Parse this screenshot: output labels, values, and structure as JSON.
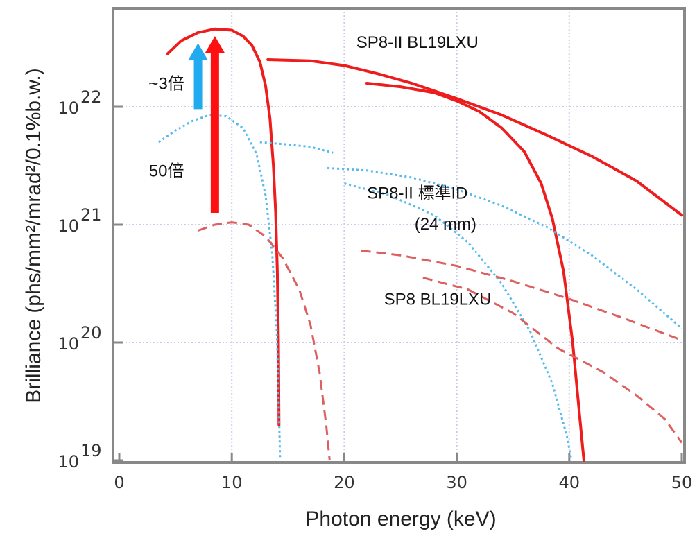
{
  "chart_data": {
    "type": "line",
    "xlabel": "Photon energy (keV)",
    "ylabel": "Brilliance (phs/mm²/mrad²/0.1%b.w.)",
    "xlim": [
      0,
      50
    ],
    "ylim_log10": [
      19,
      22.8
    ],
    "log_y": true,
    "grid": true,
    "x_ticks": [
      {
        "value": 0,
        "label": "0"
      },
      {
        "value": 10,
        "label": "10"
      },
      {
        "value": 20,
        "label": "20"
      },
      {
        "value": 30,
        "label": "30"
      },
      {
        "value": 40,
        "label": "40"
      },
      {
        "value": 50,
        "label": "50"
      }
    ],
    "y_ticks": [
      {
        "log10": 19,
        "base": "10",
        "exp": "19"
      },
      {
        "log10": 20,
        "base": "10",
        "exp": "20"
      },
      {
        "log10": 21,
        "base": "10",
        "exp": "21"
      },
      {
        "log10": 22,
        "base": "10",
        "exp": "22"
      }
    ],
    "series": [
      {
        "style": "solid",
        "color": "#ee1c1c",
        "segments": [
          [
            [
              4.3,
              22.45
            ],
            [
              5.5,
              22.56
            ],
            [
              7,
              22.63
            ],
            [
              8.5,
              22.66
            ],
            [
              10,
              22.65
            ],
            [
              11,
              22.6
            ],
            [
              11.8,
              22.52
            ],
            [
              12.5,
              22.38
            ],
            [
              13,
              22.18
            ],
            [
              13.4,
              21.9
            ],
            [
              13.7,
              21.5
            ],
            [
              13.9,
              21.1
            ],
            [
              14.05,
              20.6
            ],
            [
              14.15,
              20.0
            ],
            [
              14.2,
              19.3
            ]
          ],
          [
            [
              13.2,
              22.4
            ],
            [
              17,
              22.39
            ],
            [
              20,
              22.35
            ],
            [
              23,
              22.28
            ],
            [
              26,
              22.2
            ],
            [
              30,
              22.07
            ],
            [
              34,
              21.93
            ],
            [
              38,
              21.76
            ],
            [
              42,
              21.58
            ],
            [
              46,
              21.37
            ],
            [
              50,
              21.08
            ]
          ],
          [
            [
              22,
              22.2
            ],
            [
              25,
              22.17
            ],
            [
              28,
              22.12
            ],
            [
              30,
              22.05
            ],
            [
              32,
              21.96
            ],
            [
              34,
              21.82
            ],
            [
              36,
              21.62
            ],
            [
              37.5,
              21.35
            ],
            [
              38.5,
              21.05
            ],
            [
              39.5,
              20.6
            ],
            [
              40.3,
              20.0
            ],
            [
              40.9,
              19.4
            ],
            [
              41.3,
              19.0
            ]
          ]
        ]
      },
      {
        "style": "dotted",
        "color": "#55bbee",
        "segments": [
          [
            [
              3.5,
              21.7
            ],
            [
              5,
              21.8
            ],
            [
              6.5,
              21.88
            ],
            [
              8,
              21.93
            ],
            [
              9.5,
              21.92
            ],
            [
              11,
              21.82
            ],
            [
              12.2,
              21.6
            ],
            [
              13,
              21.25
            ],
            [
              13.6,
              20.75
            ],
            [
              14,
              20.1
            ],
            [
              14.2,
              19.4
            ],
            [
              14.3,
              19.0
            ]
          ],
          [
            [
              12.5,
              21.7
            ],
            [
              15,
              21.68
            ],
            [
              17,
              21.66
            ],
            [
              19,
              21.61
            ]
          ],
          [
            [
              18.5,
              21.48
            ],
            [
              22,
              21.46
            ],
            [
              26,
              21.4
            ],
            [
              30,
              21.3
            ],
            [
              34,
              21.16
            ],
            [
              38,
              20.98
            ],
            [
              42,
              20.74
            ],
            [
              46,
              20.45
            ],
            [
              50,
              20.12
            ]
          ],
          [
            [
              20,
              21.35
            ],
            [
              24,
              21.25
            ],
            [
              28,
              21.08
            ],
            [
              31,
              20.85
            ],
            [
              34,
              20.5
            ],
            [
              36.5,
              20.1
            ],
            [
              38.5,
              19.65
            ],
            [
              39.8,
              19.2
            ],
            [
              40.2,
              19.0
            ]
          ]
        ]
      },
      {
        "style": "dashed",
        "color": "#dd6060",
        "segments": [
          [
            [
              7,
              20.95
            ],
            [
              8.5,
              21.0
            ],
            [
              10,
              21.02
            ],
            [
              11.5,
              21.0
            ],
            [
              13,
              20.9
            ],
            [
              14.5,
              20.72
            ],
            [
              16,
              20.45
            ],
            [
              17,
              20.15
            ],
            [
              17.8,
              19.75
            ],
            [
              18.4,
              19.3
            ],
            [
              18.7,
              19.0
            ]
          ],
          [
            [
              21.5,
              20.78
            ],
            [
              25,
              20.74
            ],
            [
              30,
              20.65
            ],
            [
              35,
              20.52
            ],
            [
              40,
              20.37
            ],
            [
              45,
              20.2
            ],
            [
              50,
              20.02
            ]
          ],
          [
            [
              27,
              20.55
            ],
            [
              31,
              20.45
            ],
            [
              35,
              20.25
            ],
            [
              39,
              19.95
            ],
            [
              43,
              19.75
            ],
            [
              46,
              19.55
            ],
            [
              48.5,
              19.35
            ],
            [
              50,
              19.15
            ]
          ]
        ]
      }
    ],
    "annotations": [
      {
        "text": "SP8-II BL19LXU",
        "x": 26.5,
        "y": 22.5
      },
      {
        "text": "SP8-II 標準ID",
        "x": 26.5,
        "y": 21.22
      },
      {
        "text": "(24 mm)",
        "x": 29,
        "y": 20.96
      },
      {
        "text": "SP8 BL19LXU",
        "x": 28.3,
        "y": 20.32
      },
      {
        "text": "~3倍",
        "x": 4.2,
        "y": 22.15
      },
      {
        "text": "50倍",
        "x": 4.2,
        "y": 21.41
      }
    ],
    "arrows": [
      {
        "label": "~3倍",
        "color": "#22aaee",
        "x": 7.0,
        "from": 21.98,
        "to": 22.54
      },
      {
        "label": "50倍",
        "color": "#ff1010",
        "x": 8.5,
        "from": 21.1,
        "to": 22.6
      }
    ]
  }
}
